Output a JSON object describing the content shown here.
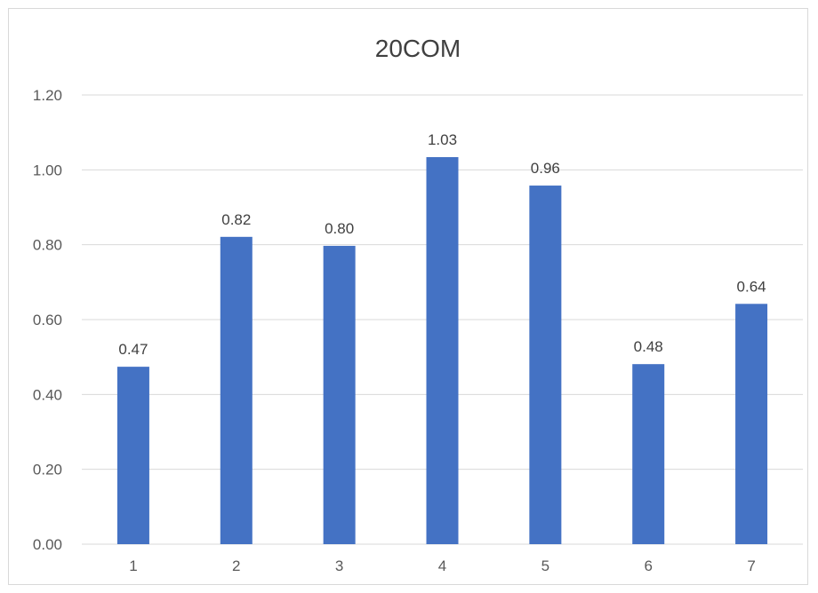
{
  "chart_data": {
    "type": "bar",
    "title": "20COM",
    "xlabel": "",
    "ylabel": "",
    "categories": [
      "1",
      "2",
      "3",
      "4",
      "5",
      "6",
      "7"
    ],
    "values": [
      0.474,
      0.821,
      0.797,
      1.034,
      0.958,
      0.481,
      0.642
    ],
    "data_labels": [
      "0.47",
      "0.82",
      "0.80",
      "1.03",
      "0.96",
      "0.48",
      "0.64"
    ],
    "y_ticks": [
      "0.00",
      "0.20",
      "0.40",
      "0.60",
      "0.80",
      "1.00",
      "1.20"
    ],
    "ylim": [
      0,
      1.2
    ],
    "grid": true,
    "legend": "none",
    "bar_color": "#4472c4",
    "grid_color": "#d9d9d9"
  }
}
